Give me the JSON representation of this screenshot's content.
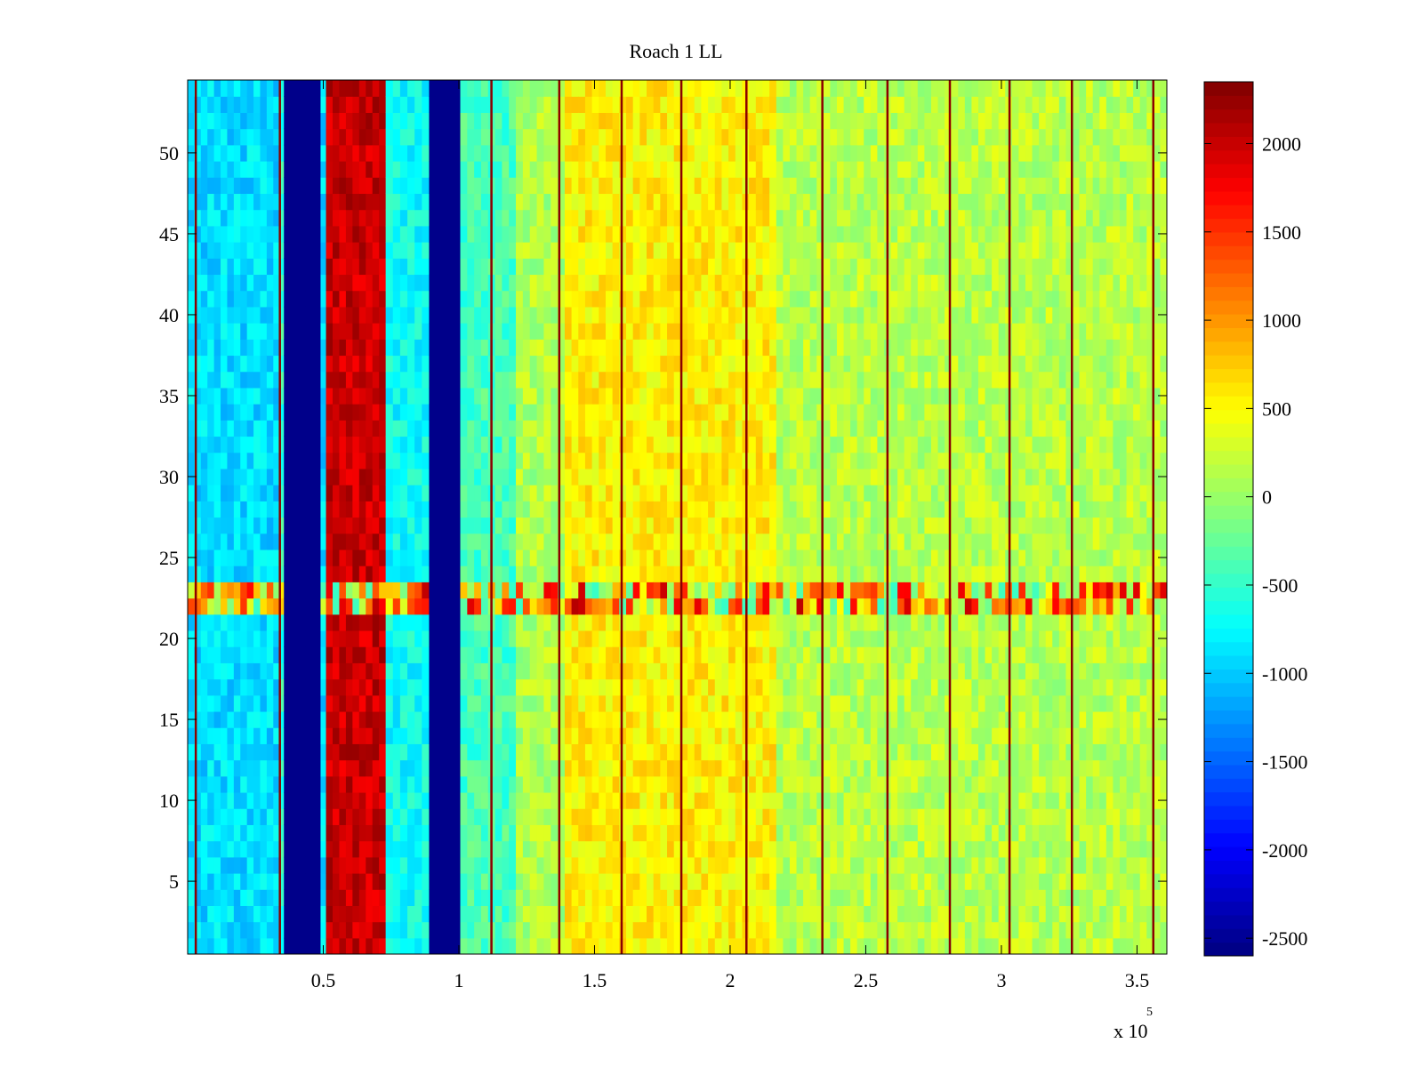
{
  "chart_data": {
    "type": "heatmap",
    "title": "Roach 1 LL",
    "xlabel": "",
    "ylabel": "",
    "x_exponent_label": "x 10",
    "x_exponent_power": "5",
    "xlim": [
      1,
      361000
    ],
    "ylim": [
      0.5,
      54.5
    ],
    "x_ticks": [
      50000,
      100000,
      150000,
      200000,
      250000,
      300000,
      350000
    ],
    "x_tick_labels": [
      "0.5",
      "1",
      "1.5",
      "2",
      "2.5",
      "3",
      "3.5"
    ],
    "y_ticks": [
      5,
      10,
      15,
      20,
      25,
      30,
      35,
      40,
      45,
      50
    ],
    "y_tick_labels": [
      "5",
      "10",
      "15",
      "20",
      "25",
      "30",
      "35",
      "40",
      "45",
      "50"
    ],
    "colorbar": {
      "colormap": "jet",
      "clim": [
        -2600,
        2350
      ],
      "ticks": [
        -2500,
        -2000,
        -1500,
        -1000,
        -500,
        0,
        500,
        1000,
        1500,
        2000
      ],
      "tick_labels": [
        "-2500",
        "-2000",
        "-1500",
        "-1000",
        "-500",
        "0",
        "500",
        "1000",
        "1500",
        "2000"
      ]
    },
    "column_bands": [
      {
        "x_start": 1,
        "x_end": 34000,
        "value": -900
      },
      {
        "x_start": 34000,
        "x_end": 35500,
        "value": -500
      },
      {
        "x_start": 35500,
        "x_end": 49000,
        "value": -2550
      },
      {
        "x_start": 49000,
        "x_end": 51000,
        "value": -900
      },
      {
        "x_start": 51000,
        "x_end": 73000,
        "value": 2000
      },
      {
        "x_start": 73000,
        "x_end": 89000,
        "value": -700
      },
      {
        "x_start": 89000,
        "x_end": 100500,
        "value": -2550
      },
      {
        "x_start": 100500,
        "x_end": 121000,
        "value": -400
      },
      {
        "x_start": 121000,
        "x_end": 139000,
        "value": 100
      },
      {
        "x_start": 139000,
        "x_end": 217000,
        "value": 550
      },
      {
        "x_start": 217000,
        "x_end": 361000,
        "value": 150
      }
    ],
    "row_band": {
      "y_start": 21.5,
      "y_end": 23.5,
      "value": 800
    },
    "vertical_lines_x": [
      3000,
      34000,
      112000,
      137000,
      160000,
      182000,
      206000,
      234000,
      258000,
      281000,
      303000,
      326000,
      356000
    ]
  }
}
